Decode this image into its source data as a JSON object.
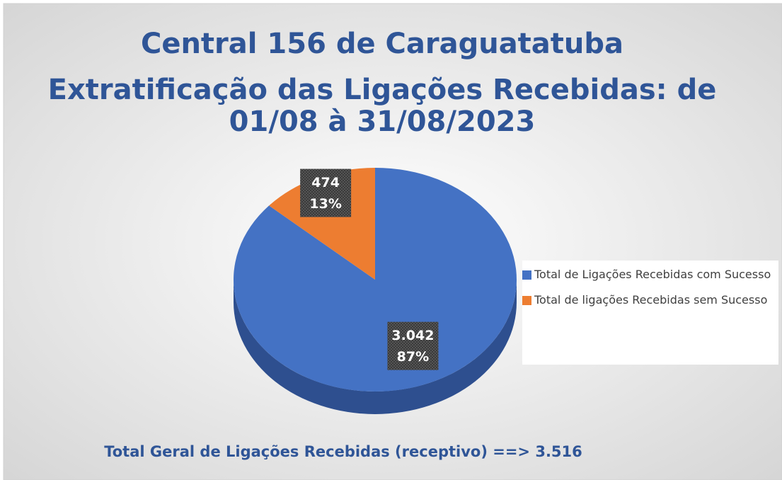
{
  "chart_data": {
    "type": "pie",
    "title": [
      "Central 156 de Caraguatatuba",
      "Extratificação das Ligações Recebidas: de",
      "01/08 à 31/08/2023"
    ],
    "series": [
      {
        "name": "Total de Ligações Recebidas com Sucesso",
        "color": "#4472c4"
      },
      {
        "name": "Total de ligações Recebidas sem Sucesso",
        "color": "#ed7d31"
      }
    ],
    "values": [
      3042,
      474
    ],
    "value_labels": [
      "3.042",
      "474"
    ],
    "percent_labels": [
      "87%",
      "13%"
    ],
    "legend": "right",
    "footnote": "Total Geral de Ligações Recebidas (receptivo) ==> 3.516"
  }
}
